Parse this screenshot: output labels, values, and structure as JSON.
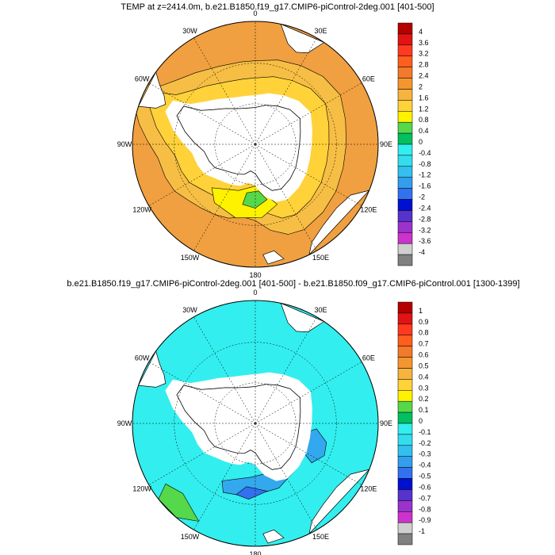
{
  "colors": {
    "ocean_top": "#F0A040",
    "ocean_top_light": "#F6BE44",
    "ocean_top_mid": "#FFD23A",
    "ocean_top_yellow": "#FFF200",
    "ocean_top_green": "#55D84A",
    "land": "#FFFFFF",
    "ocean_bottom": "#33EEEE",
    "ocean_bottom_blue": "#33A8EE",
    "ocean_bottom_dark": "#3370EE",
    "ocean_bottom_green": "#55D84A"
  },
  "maps": [
    {
      "title": "TEMP at z=2414.0m, b.e21.B1850.f19_g17.CMIP6-piControl-2deg.001 [401-500]",
      "lon_labels": [
        "0",
        "30E",
        "60E",
        "90E",
        "120E",
        "150E",
        "180",
        "150W",
        "120W",
        "90W",
        "60W",
        "30W"
      ],
      "colorbar": {
        "labels": [
          "4",
          "3.6",
          "3.2",
          "2.8",
          "2.4",
          "2",
          "1.6",
          "1.2",
          "0.8",
          "0.4",
          "0",
          "-0.4",
          "-0.8",
          "-1.2",
          "-1.6",
          "-2",
          "-2.4",
          "-2.8",
          "-3.2",
          "-3.6",
          "-4"
        ],
        "colors": [
          "#B50000",
          "#E01414",
          "#FF3A1E",
          "#FF5E1E",
          "#F27A2A",
          "#F5952F",
          "#F6B340",
          "#FFD23A",
          "#FFF200",
          "#55D84A",
          "#00C060",
          "#33EEEE",
          "#33DDEE",
          "#33C0EE",
          "#339EEE",
          "#3372EE",
          "#0010D0",
          "#5533CC",
          "#9933CC",
          "#CC33CC",
          "#CFCFCF",
          "#808080"
        ]
      }
    },
    {
      "title": "b.e21.B1850.f19_g17.CMIP6-piControl-2deg.001 [401-500] - b.e21.B1850.f09_g17.CMIP6-piControl.001 [1300-1399]",
      "lon_labels": [
        "0",
        "30E",
        "60E",
        "90E",
        "120E",
        "150E",
        "180",
        "150W",
        "120W",
        "90W",
        "60W",
        "30W"
      ],
      "colorbar": {
        "labels": [
          "1",
          "0.9",
          "0.8",
          "0.7",
          "0.6",
          "0.5",
          "0.4",
          "0.3",
          "0.2",
          "0.1",
          "0",
          "-0.1",
          "-0.2",
          "-0.3",
          "-0.4",
          "-0.5",
          "-0.6",
          "-0.7",
          "-0.8",
          "-0.9",
          "-1"
        ],
        "colors": [
          "#B50000",
          "#E01414",
          "#FF3A1E",
          "#FF5E1E",
          "#F27A2A",
          "#F5952F",
          "#F6B340",
          "#FFD23A",
          "#FFF200",
          "#55D84A",
          "#00C060",
          "#33EEEE",
          "#33DDEE",
          "#33C0EE",
          "#339EEE",
          "#3372EE",
          "#0010D0",
          "#5533CC",
          "#9933CC",
          "#CC33CC",
          "#CFCFCF",
          "#808080"
        ]
      }
    }
  ]
}
